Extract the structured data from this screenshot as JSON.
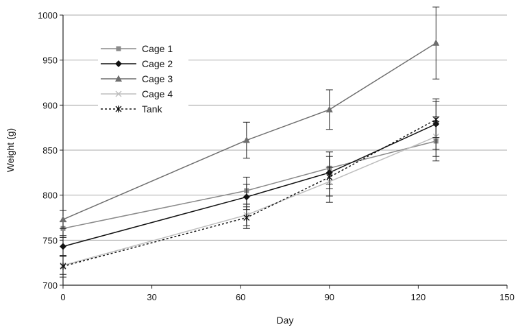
{
  "chart_data": {
    "type": "line",
    "title": "",
    "xlabel": "Day",
    "ylabel": "Weight (g)",
    "xlim": [
      0,
      150
    ],
    "ylim": [
      700,
      1000
    ],
    "xticks": [
      0,
      30,
      60,
      90,
      120,
      150
    ],
    "yticks": [
      700,
      750,
      800,
      850,
      900,
      950,
      1000
    ],
    "grid": "horizontal",
    "legend": "top-left",
    "series": [
      {
        "name": "Cage 1",
        "color": "#8a8a8a",
        "dash": "solid",
        "marker": "square",
        "points": [
          {
            "x": 0,
            "y": 763,
            "err": 8
          },
          {
            "x": 62,
            "y": 805,
            "err": 15
          },
          {
            "x": 90,
            "y": 830,
            "err": 18
          },
          {
            "x": 126,
            "y": 860,
            "err": 22
          }
        ]
      },
      {
        "name": "Cage 2",
        "color": "#111111",
        "dash": "solid",
        "marker": "diamond",
        "points": [
          {
            "x": 0,
            "y": 743,
            "err": 10
          },
          {
            "x": 62,
            "y": 798,
            "err": 14
          },
          {
            "x": 90,
            "y": 825,
            "err": 18
          },
          {
            "x": 126,
            "y": 879,
            "err": 28
          }
        ]
      },
      {
        "name": "Cage 3",
        "color": "#6e6e6e",
        "dash": "solid",
        "marker": "triangle",
        "points": [
          {
            "x": 0,
            "y": 773,
            "err": 10
          },
          {
            "x": 62,
            "y": 861,
            "err": 20
          },
          {
            "x": 90,
            "y": 895,
            "err": 22
          },
          {
            "x": 126,
            "y": 969,
            "err": 40
          }
        ]
      },
      {
        "name": "Cage 4",
        "color": "#bdbdbd",
        "dash": "solid",
        "marker": "x",
        "points": [
          {
            "x": 0,
            "y": 722,
            "err": 10
          },
          {
            "x": 62,
            "y": 778,
            "err": 12
          },
          {
            "x": 90,
            "y": 815,
            "err": 16
          },
          {
            "x": 126,
            "y": 865,
            "err": 22
          }
        ]
      },
      {
        "name": "Tank",
        "color": "#111111",
        "dash": "dotted",
        "marker": "star",
        "points": [
          {
            "x": 0,
            "y": 721,
            "err": 12
          },
          {
            "x": 62,
            "y": 775,
            "err": 12
          },
          {
            "x": 90,
            "y": 820,
            "err": 28
          },
          {
            "x": 126,
            "y": 884,
            "err": 20
          }
        ]
      }
    ]
  }
}
